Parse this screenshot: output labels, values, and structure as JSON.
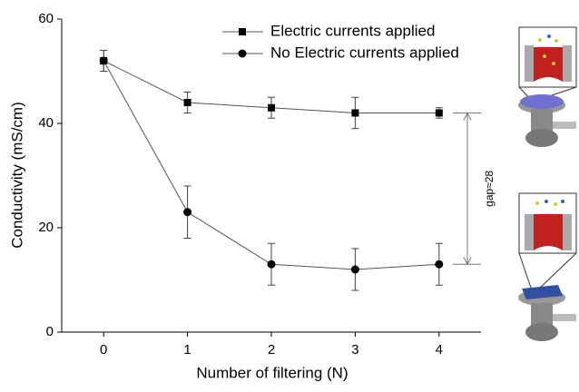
{
  "chart_data": {
    "type": "line",
    "x_label": "Number of filtering (N)",
    "y_label": "Conductivity (mS/cm)",
    "x": [
      0,
      1,
      2,
      3,
      4
    ],
    "series": [
      {
        "name": "Electric currents applied",
        "color": "#000000",
        "marker": "square",
        "values": [
          52,
          44,
          43,
          42,
          42
        ],
        "errors": [
          2,
          2,
          2,
          3,
          1
        ]
      },
      {
        "name": "No Electric currents applied",
        "color": "#000000",
        "marker": "circle",
        "values": [
          52,
          23,
          13,
          12,
          13
        ],
        "errors": [
          2,
          5,
          4,
          4,
          4
        ]
      }
    ],
    "xlim": [
      -0.5,
      4.5
    ],
    "ylim": [
      0,
      60
    ],
    "xticks": [
      0,
      1,
      2,
      3,
      4
    ],
    "yticks": [
      0,
      20,
      40,
      60
    ],
    "annotation": "gap≈28",
    "legend": "top"
  }
}
